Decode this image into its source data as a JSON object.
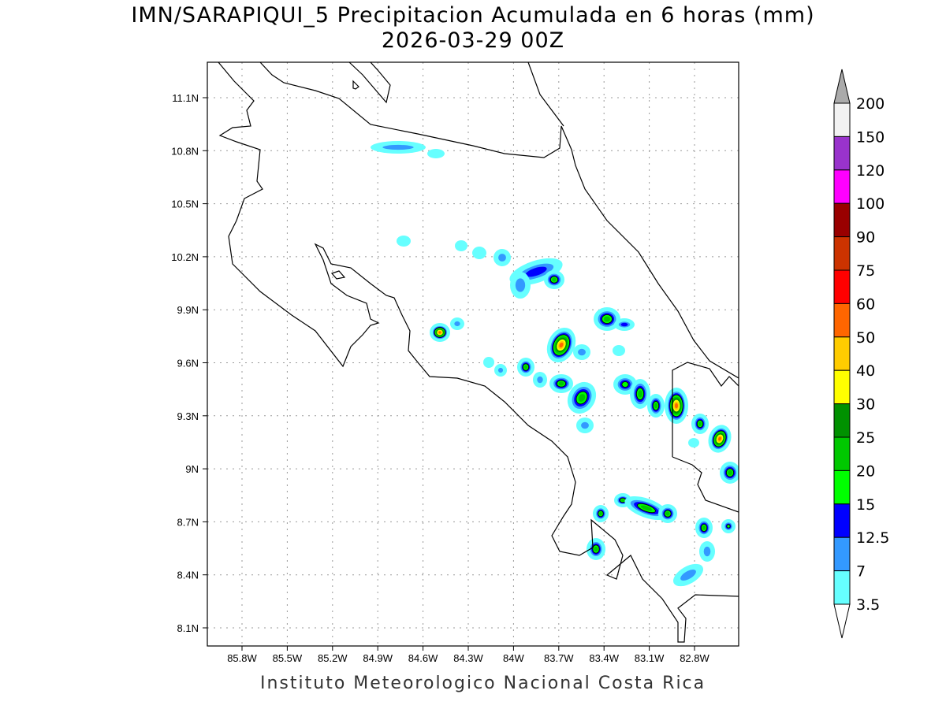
{
  "title": "IMN/SARAPIQUI_5 Precipitacion Acumulada en 6 horas (mm)",
  "subtitle": "2026-03-29 00Z",
  "footer": "Instituto Meteorologico Nacional Costa Rica",
  "map": {
    "lon_ticks": [
      "85.8W",
      "85.5W",
      "85.2W",
      "84.9W",
      "84.6W",
      "84.3W",
      "84W",
      "83.7W",
      "83.4W",
      "83.1W",
      "82.8W"
    ],
    "lat_ticks": [
      "11.1N",
      "10.8N",
      "10.5N",
      "10.2N",
      "9.9N",
      "9.6N",
      "9.3N",
      "9N",
      "8.7N",
      "8.4N",
      "8.1N"
    ]
  },
  "colorbar": {
    "levels": [
      "200",
      "150",
      "120",
      "100",
      "90",
      "75",
      "60",
      "50",
      "40",
      "30",
      "25",
      "20",
      "15",
      "12.5",
      "7",
      "3.5"
    ],
    "colors": [
      "#f2f2f2",
      "#9933cc",
      "#ff00ff",
      "#990000",
      "#cc3300",
      "#ff0000",
      "#ff6600",
      "#ffcc00",
      "#ffff00",
      "#009100",
      "#00c800",
      "#00ff00",
      "#0000ff",
      "#3399ff",
      "#66ffff"
    ],
    "over_color": "#aaaaaa",
    "under_color": "#ffffff"
  }
}
